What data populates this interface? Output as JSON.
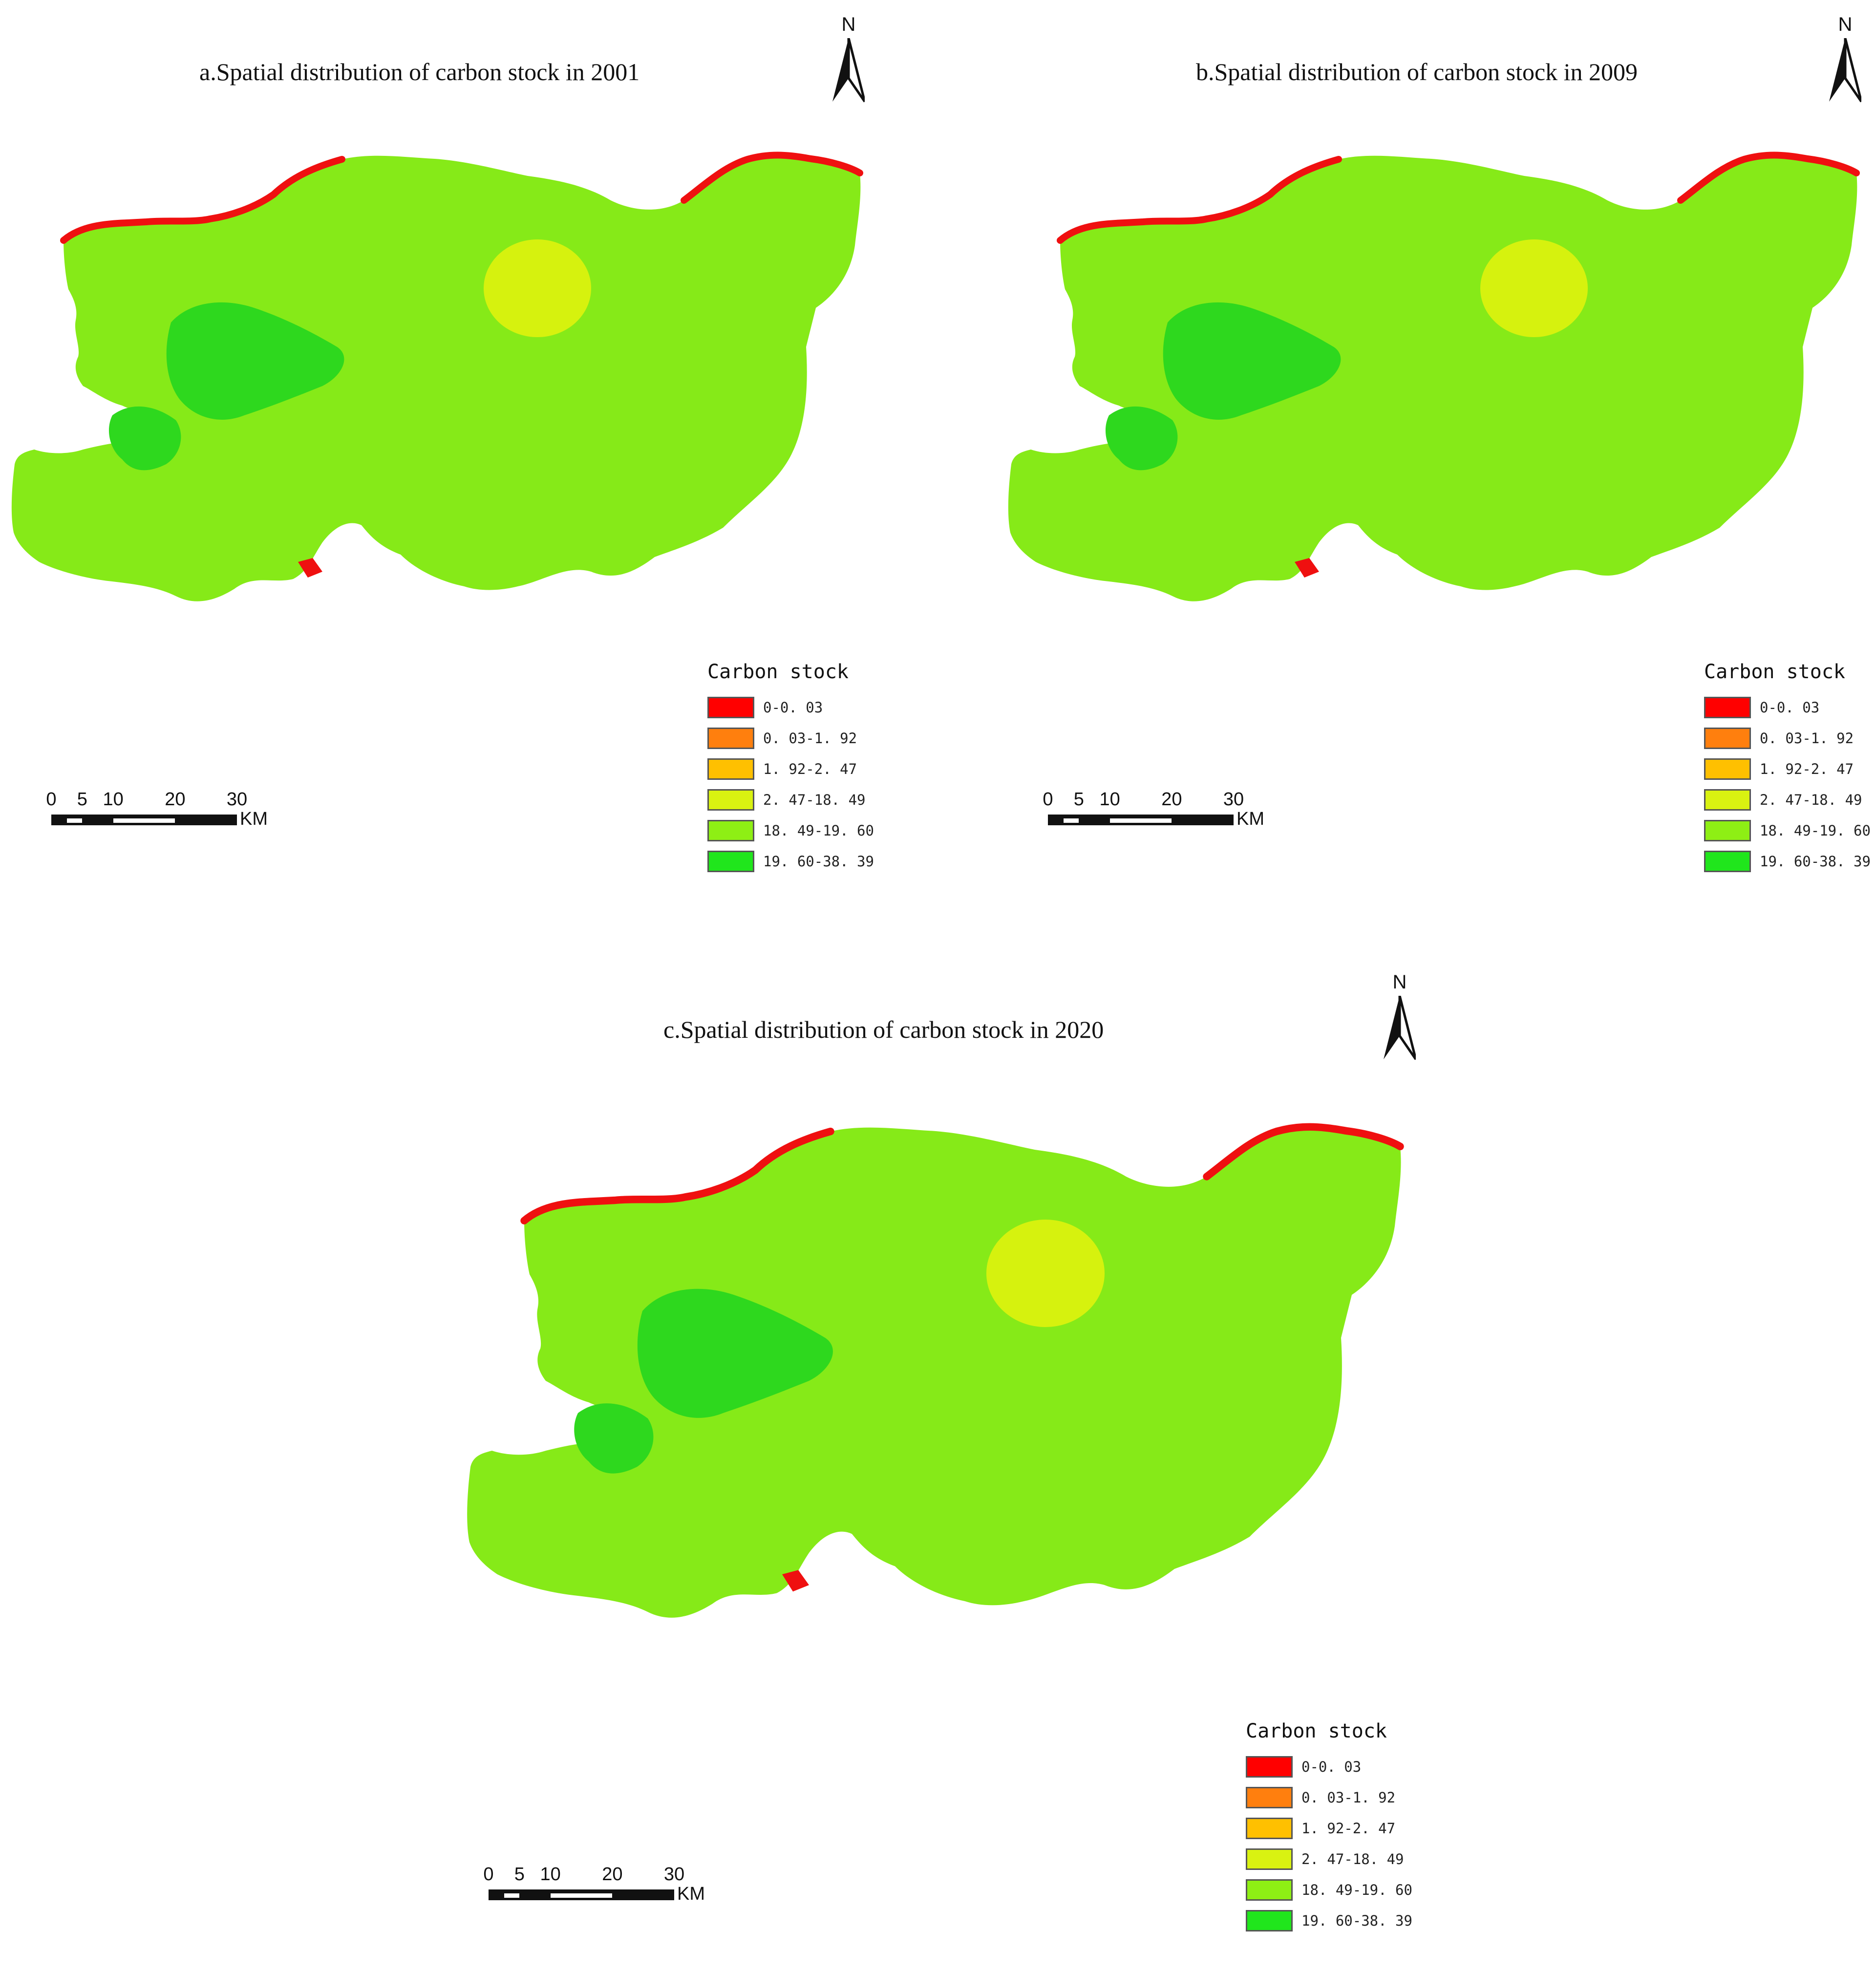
{
  "panels": [
    {
      "title": "a.Spatial distribution of carbon stock in 2001",
      "north_label": "N",
      "legend_title": "Carbon stock",
      "scale_ticks": [
        "0",
        "5",
        "10",
        "20",
        "30"
      ],
      "scale_unit": "KM"
    },
    {
      "title": "b.Spatial distribution of carbon stock in 2009",
      "north_label": "N",
      "legend_title": "Carbon stock",
      "scale_ticks": [
        "0",
        "5",
        "10",
        "20",
        "30"
      ],
      "scale_unit": "KM"
    },
    {
      "title": "c.Spatial distribution of carbon stock in 2020",
      "north_label": "N",
      "legend_title": "Carbon stock",
      "scale_ticks": [
        "0",
        "5",
        "10",
        "20",
        "30"
      ],
      "scale_unit": "KM"
    }
  ],
  "legend_classes": [
    {
      "label": "0-0. 03",
      "color": "#ff0000"
    },
    {
      "label": "0. 03-1. 92",
      "color": "#ff7f0e"
    },
    {
      "label": "1. 92-2. 47",
      "color": "#ffc000"
    },
    {
      "label": "2. 47-18. 49",
      "color": "#d9f211"
    },
    {
      "label": "18. 49-19. 60",
      "color": "#8eef14"
    },
    {
      "label": "19. 60-38. 39",
      "color": "#20e61c"
    }
  ],
  "map_colors": {
    "base": "#86ea18",
    "urban": "#d6f20e",
    "forest": "#2ed81e",
    "water": "#ef1010"
  }
}
